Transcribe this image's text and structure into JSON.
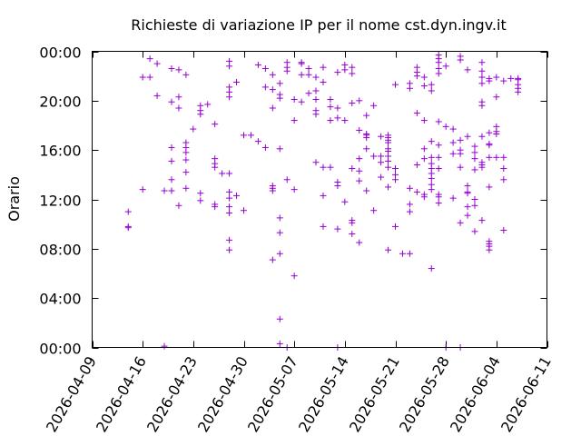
{
  "chart_data": {
    "type": "scatter",
    "title": "Richieste di variazione IP per il nome cst.dyn.ingv.it",
    "xlabel": "",
    "ylabel": "Orario",
    "x_is_date": true,
    "xlim": [
      "2026-04-09",
      "2026-06-11"
    ],
    "ylim": [
      0,
      24
    ],
    "x_ticks": [
      "2026-04-09",
      "2026-04-16",
      "2026-04-23",
      "2026-04-30",
      "2026-05-07",
      "2026-05-14",
      "2026-05-21",
      "2026-05-28",
      "2026-06-04",
      "2026-06-11"
    ],
    "y_ticks": [
      {
        "value": 0,
        "label": "00:00"
      },
      {
        "value": 4,
        "label": "04:00"
      },
      {
        "value": 8,
        "label": "08:00"
      },
      {
        "value": 12,
        "label": "12:00"
      },
      {
        "value": 16,
        "label": "16:00"
      },
      {
        "value": 20,
        "label": "20:00"
      },
      {
        "value": 24,
        "label": "00:00"
      }
    ],
    "grid": false,
    "marker": "+",
    "color": "#9400d3",
    "points": [
      [
        "2026-04-14",
        11.0
      ],
      [
        "2026-04-14",
        9.8
      ],
      [
        "2026-04-14",
        9.7
      ],
      [
        "2026-04-16",
        12.8
      ],
      [
        "2026-04-16",
        21.9
      ],
      [
        "2026-04-17",
        21.9
      ],
      [
        "2026-04-17",
        23.4
      ],
      [
        "2026-04-18",
        23.0
      ],
      [
        "2026-04-18",
        20.4
      ],
      [
        "2026-04-19",
        12.7
      ],
      [
        "2026-04-19",
        0.1
      ],
      [
        "2026-04-20",
        22.6
      ],
      [
        "2026-04-20",
        19.9
      ],
      [
        "2026-04-20",
        16.2
      ],
      [
        "2026-04-20",
        15.1
      ],
      [
        "2026-04-20",
        13.6
      ],
      [
        "2026-04-20",
        12.7
      ],
      [
        "2026-04-21",
        22.5
      ],
      [
        "2026-04-21",
        20.3
      ],
      [
        "2026-04-21",
        19.4
      ],
      [
        "2026-04-21",
        11.5
      ],
      [
        "2026-04-22",
        22.1
      ],
      [
        "2026-04-22",
        16.6
      ],
      [
        "2026-04-22",
        16.2
      ],
      [
        "2026-04-22",
        15.8
      ],
      [
        "2026-04-22",
        15.2
      ],
      [
        "2026-04-22",
        14.2
      ],
      [
        "2026-04-22",
        12.9
      ],
      [
        "2026-04-23",
        17.7
      ],
      [
        "2026-04-24",
        19.6
      ],
      [
        "2026-04-24",
        19.2
      ],
      [
        "2026-04-24",
        18.9
      ],
      [
        "2026-04-24",
        12.5
      ],
      [
        "2026-04-24",
        11.9
      ],
      [
        "2026-04-25",
        19.7
      ],
      [
        "2026-04-26",
        18.1
      ],
      [
        "2026-04-26",
        15.3
      ],
      [
        "2026-04-26",
        14.9
      ],
      [
        "2026-04-26",
        14.6
      ],
      [
        "2026-04-26",
        11.6
      ],
      [
        "2026-04-26",
        11.4
      ],
      [
        "2026-04-27",
        14.1
      ],
      [
        "2026-04-28",
        23.2
      ],
      [
        "2026-04-28",
        22.8
      ],
      [
        "2026-04-28",
        21.1
      ],
      [
        "2026-04-28",
        20.7
      ],
      [
        "2026-04-28",
        20.3
      ],
      [
        "2026-04-28",
        14.1
      ],
      [
        "2026-04-28",
        12.6
      ],
      [
        "2026-04-28",
        12.1
      ],
      [
        "2026-04-28",
        11.4
      ],
      [
        "2026-04-28",
        10.9
      ],
      [
        "2026-04-28",
        8.7
      ],
      [
        "2026-04-28",
        7.9
      ],
      [
        "2026-04-29",
        21.5
      ],
      [
        "2026-04-29",
        12.3
      ],
      [
        "2026-04-30",
        17.2
      ],
      [
        "2026-04-30",
        11.1
      ],
      [
        "2026-05-01",
        17.2
      ],
      [
        "2026-05-02",
        22.9
      ],
      [
        "2026-05-02",
        16.7
      ],
      [
        "2026-05-03",
        22.6
      ],
      [
        "2026-05-03",
        21.1
      ],
      [
        "2026-05-03",
        16.2
      ],
      [
        "2026-05-04",
        22.1
      ],
      [
        "2026-05-04",
        20.9
      ],
      [
        "2026-05-04",
        19.4
      ],
      [
        "2026-05-04",
        13.1
      ],
      [
        "2026-05-04",
        12.9
      ],
      [
        "2026-05-04",
        12.7
      ],
      [
        "2026-05-04",
        7.1
      ],
      [
        "2026-05-05",
        21.4
      ],
      [
        "2026-05-05",
        20.5
      ],
      [
        "2026-05-05",
        20.2
      ],
      [
        "2026-05-05",
        16.1
      ],
      [
        "2026-05-05",
        10.5
      ],
      [
        "2026-05-05",
        9.3
      ],
      [
        "2026-05-05",
        7.6
      ],
      [
        "2026-05-05",
        2.3
      ],
      [
        "2026-05-05",
        0.3
      ],
      [
        "2026-05-06",
        23.1
      ],
      [
        "2026-05-06",
        22.7
      ],
      [
        "2026-05-06",
        22.4
      ],
      [
        "2026-05-06",
        13.6
      ],
      [
        "2026-05-06",
        0.0
      ],
      [
        "2026-05-07",
        20.1
      ],
      [
        "2026-05-07",
        18.4
      ],
      [
        "2026-05-07",
        12.8
      ],
      [
        "2026-05-07",
        5.8
      ],
      [
        "2026-05-08",
        23.1
      ],
      [
        "2026-05-08",
        23.0
      ],
      [
        "2026-05-08",
        22.1
      ],
      [
        "2026-05-08",
        19.9
      ],
      [
        "2026-05-09",
        22.6
      ],
      [
        "2026-05-09",
        22.1
      ],
      [
        "2026-05-09",
        20.6
      ],
      [
        "2026-05-10",
        21.9
      ],
      [
        "2026-05-10",
        20.8
      ],
      [
        "2026-05-10",
        20.1
      ],
      [
        "2026-05-10",
        19.2
      ],
      [
        "2026-05-10",
        18.9
      ],
      [
        "2026-05-10",
        15.0
      ],
      [
        "2026-05-11",
        22.7
      ],
      [
        "2026-05-11",
        21.5
      ],
      [
        "2026-05-11",
        14.6
      ],
      [
        "2026-05-11",
        12.3
      ],
      [
        "2026-05-11",
        9.8
      ],
      [
        "2026-05-12",
        20.1
      ],
      [
        "2026-05-12",
        19.5
      ],
      [
        "2026-05-12",
        18.4
      ],
      [
        "2026-05-12",
        14.6
      ],
      [
        "2026-05-13",
        22.3
      ],
      [
        "2026-05-13",
        19.4
      ],
      [
        "2026-05-13",
        18.6
      ],
      [
        "2026-05-13",
        13.4
      ],
      [
        "2026-05-13",
        13.1
      ],
      [
        "2026-05-13",
        9.6
      ],
      [
        "2026-05-13",
        0.0
      ],
      [
        "2026-05-14",
        22.9
      ],
      [
        "2026-05-14",
        22.5
      ],
      [
        "2026-05-14",
        18.4
      ],
      [
        "2026-05-14",
        11.8
      ],
      [
        "2026-05-15",
        22.7
      ],
      [
        "2026-05-15",
        22.2
      ],
      [
        "2026-05-15",
        19.8
      ],
      [
        "2026-05-15",
        14.5
      ],
      [
        "2026-05-15",
        10.3
      ],
      [
        "2026-05-15",
        10.1
      ],
      [
        "2026-05-15",
        9.2
      ],
      [
        "2026-05-16",
        20.0
      ],
      [
        "2026-05-16",
        17.6
      ],
      [
        "2026-05-16",
        15.3
      ],
      [
        "2026-05-16",
        14.3
      ],
      [
        "2026-05-16",
        13.5
      ],
      [
        "2026-05-16",
        8.5
      ],
      [
        "2026-05-17",
        18.8
      ],
      [
        "2026-05-17",
        17.3
      ],
      [
        "2026-05-17",
        17.2
      ],
      [
        "2026-05-17",
        17.0
      ],
      [
        "2026-05-17",
        16.1
      ],
      [
        "2026-05-17",
        12.7
      ],
      [
        "2026-05-18",
        19.6
      ],
      [
        "2026-05-18",
        15.5
      ],
      [
        "2026-05-18",
        11.1
      ],
      [
        "2026-05-19",
        17.1
      ],
      [
        "2026-05-19",
        15.5
      ],
      [
        "2026-05-19",
        15.0
      ],
      [
        "2026-05-19",
        13.8
      ],
      [
        "2026-05-20",
        17.2
      ],
      [
        "2026-05-20",
        17.0
      ],
      [
        "2026-05-20",
        16.8
      ],
      [
        "2026-05-20",
        16.6
      ],
      [
        "2026-05-20",
        16.1
      ],
      [
        "2026-05-20",
        15.9
      ],
      [
        "2026-05-20",
        15.5
      ],
      [
        "2026-05-20",
        15.1
      ],
      [
        "2026-05-20",
        14.6
      ],
      [
        "2026-05-20",
        13.0
      ],
      [
        "2026-05-20",
        7.9
      ],
      [
        "2026-05-21",
        21.3
      ],
      [
        "2026-05-21",
        14.5
      ],
      [
        "2026-05-21",
        14.0
      ],
      [
        "2026-05-21",
        13.6
      ],
      [
        "2026-05-21",
        9.8
      ],
      [
        "2026-05-22",
        7.6
      ],
      [
        "2026-05-23",
        21.4
      ],
      [
        "2026-05-23",
        21.0
      ],
      [
        "2026-05-23",
        12.9
      ],
      [
        "2026-05-23",
        11.6
      ],
      [
        "2026-05-23",
        11.0
      ],
      [
        "2026-05-23",
        7.6
      ],
      [
        "2026-05-24",
        22.7
      ],
      [
        "2026-05-24",
        22.3
      ],
      [
        "2026-05-24",
        22.0
      ],
      [
        "2026-05-24",
        19.0
      ],
      [
        "2026-05-24",
        14.8
      ],
      [
        "2026-05-24",
        12.6
      ],
      [
        "2026-05-25",
        21.9
      ],
      [
        "2026-05-25",
        21.2
      ],
      [
        "2026-05-25",
        18.4
      ],
      [
        "2026-05-25",
        16.1
      ],
      [
        "2026-05-25",
        15.3
      ],
      [
        "2026-05-25",
        12.4
      ],
      [
        "2026-05-25",
        12.2
      ],
      [
        "2026-05-26",
        21.3
      ],
      [
        "2026-05-26",
        20.8
      ],
      [
        "2026-05-26",
        16.7
      ],
      [
        "2026-05-26",
        15.4
      ],
      [
        "2026-05-26",
        14.9
      ],
      [
        "2026-05-26",
        14.5
      ],
      [
        "2026-05-26",
        14.1
      ],
      [
        "2026-05-26",
        13.7
      ],
      [
        "2026-05-26",
        13.2
      ],
      [
        "2026-05-26",
        12.8
      ],
      [
        "2026-05-26",
        6.4
      ],
      [
        "2026-05-27",
        23.7
      ],
      [
        "2026-05-27",
        23.4
      ],
      [
        "2026-05-27",
        23.1
      ],
      [
        "2026-05-27",
        22.6
      ],
      [
        "2026-05-27",
        22.2
      ],
      [
        "2026-05-27",
        18.3
      ],
      [
        "2026-05-27",
        16.4
      ],
      [
        "2026-05-27",
        15.4
      ],
      [
        "2026-05-27",
        14.5
      ],
      [
        "2026-05-27",
        12.4
      ],
      [
        "2026-05-27",
        12.2
      ],
      [
        "2026-05-27",
        11.7
      ],
      [
        "2026-05-28",
        22.8
      ],
      [
        "2026-05-28",
        17.9
      ],
      [
        "2026-05-28",
        0.0
      ],
      [
        "2026-05-29",
        17.7
      ],
      [
        "2026-05-29",
        16.6
      ],
      [
        "2026-05-29",
        15.7
      ],
      [
        "2026-05-29",
        12.1
      ],
      [
        "2026-05-30",
        23.6
      ],
      [
        "2026-05-30",
        23.3
      ],
      [
        "2026-05-30",
        16.8
      ],
      [
        "2026-05-30",
        16.0
      ],
      [
        "2026-05-30",
        15.7
      ],
      [
        "2026-05-30",
        14.6
      ],
      [
        "2026-05-30",
        10.1
      ],
      [
        "2026-05-30",
        0.0
      ],
      [
        "2026-05-31",
        22.5
      ],
      [
        "2026-05-31",
        17.1
      ],
      [
        "2026-05-31",
        13.1
      ],
      [
        "2026-05-31",
        12.6
      ],
      [
        "2026-05-31",
        12.5
      ],
      [
        "2026-05-31",
        11.4
      ],
      [
        "2026-05-31",
        10.7
      ],
      [
        "2026-06-01",
        16.3
      ],
      [
        "2026-06-01",
        15.8
      ],
      [
        "2026-06-01",
        15.3
      ],
      [
        "2026-06-01",
        14.4
      ],
      [
        "2026-06-01",
        12.0
      ],
      [
        "2026-06-01",
        11.5
      ],
      [
        "2026-06-01",
        9.4
      ],
      [
        "2026-06-02",
        23.1
      ],
      [
        "2026-06-02",
        22.4
      ],
      [
        "2026-06-02",
        21.9
      ],
      [
        "2026-06-02",
        21.4
      ],
      [
        "2026-06-02",
        19.9
      ],
      [
        "2026-06-02",
        19.6
      ],
      [
        "2026-06-02",
        17.1
      ],
      [
        "2026-06-02",
        15.0
      ],
      [
        "2026-06-02",
        14.8
      ],
      [
        "2026-06-02",
        14.6
      ],
      [
        "2026-06-02",
        10.3
      ],
      [
        "2026-06-03",
        21.8
      ],
      [
        "2026-06-03",
        21.6
      ],
      [
        "2026-06-03",
        17.4
      ],
      [
        "2026-06-03",
        16.5
      ],
      [
        "2026-06-03",
        16.4
      ],
      [
        "2026-06-03",
        15.4
      ],
      [
        "2026-06-03",
        13.0
      ],
      [
        "2026-06-03",
        8.6
      ],
      [
        "2026-06-03",
        8.4
      ],
      [
        "2026-06-03",
        8.2
      ],
      [
        "2026-06-03",
        7.9
      ],
      [
        "2026-06-04",
        21.9
      ],
      [
        "2026-06-04",
        20.3
      ],
      [
        "2026-06-04",
        17.9
      ],
      [
        "2026-06-04",
        17.5
      ],
      [
        "2026-06-04",
        17.3
      ],
      [
        "2026-06-04",
        15.4
      ],
      [
        "2026-06-05",
        21.6
      ],
      [
        "2026-06-05",
        15.4
      ],
      [
        "2026-06-05",
        14.5
      ],
      [
        "2026-06-05",
        13.6
      ],
      [
        "2026-06-05",
        9.5
      ],
      [
        "2026-06-06",
        21.8
      ],
      [
        "2026-06-07",
        21.8
      ],
      [
        "2026-06-07",
        21.7
      ],
      [
        "2026-06-07",
        21.3
      ],
      [
        "2026-06-07",
        21.0
      ],
      [
        "2026-06-07",
        20.7
      ]
    ]
  }
}
